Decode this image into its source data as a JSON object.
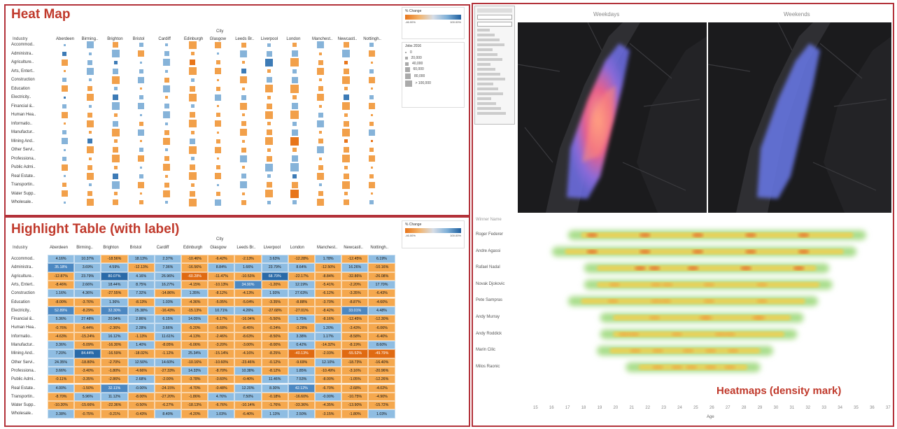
{
  "colors": {
    "orange": "#e8751a",
    "blue": "#3d7bb6",
    "frame": "#b3323a",
    "map_bg": "#1b1b1d"
  },
  "heatmap": {
    "title": "Heat Map",
    "industry_header": "Industry",
    "city_header": "City",
    "cities": [
      "Aberdeen",
      "Birming..",
      "Brighton",
      "Bristol",
      "Cardiff",
      "Edinburgh",
      "Glasgow",
      "Leeds Br..",
      "Liverpool",
      "London",
      "Manchest..",
      "Newcastl..",
      "Nottingh.."
    ],
    "industries": [
      "Accommod..",
      "Administra..",
      "Agriculture..",
      "Arts, Entert..",
      "Construction",
      "Education",
      "Electricity..",
      "Financial &..",
      "Human Hea..",
      "Informatio..",
      "Manufactur..",
      "Mining And..",
      "Other Servi..",
      "Professiona..",
      "Public Admi..",
      "Real Estate..",
      "Transportin..",
      "Water Supp..",
      "Wholesale.."
    ],
    "legend": {
      "title": "% Change",
      "min": "-46.00%",
      "max": "100.00%",
      "size_title": "Jobs 2016",
      "sizes": [
        "0",
        "20,000",
        "40,000",
        "60,000",
        "80,000",
        "> 100,000"
      ]
    }
  },
  "highlight": {
    "title": "Highlight Table (with label)",
    "industry_header": "Industry",
    "city_header": "City",
    "cities": [
      "Aberdeen",
      "Birming..",
      "Brighton",
      "Bristol",
      "Cardiff",
      "Edinburgh",
      "Glasgow",
      "Leeds Br..",
      "Liverpool",
      "London",
      "Manchest..",
      "Newcastl..",
      "Nottingh.."
    ],
    "industries": [
      "Accommod..",
      "Administra..",
      "Agriculture..",
      "Arts, Entert..",
      "Construction",
      "Education",
      "Electricity..",
      "Financial &..",
      "Human Hea..",
      "Informatio..",
      "Manufactur..",
      "Mining And..",
      "Other Servi..",
      "Professiona..",
      "Public Admi..",
      "Real Estate..",
      "Transportin..",
      "Water Supp..",
      "Wholesale.."
    ],
    "values": [
      [
        "4.16%",
        "10.37%",
        "-18.56%",
        "18.13%",
        "2.37%",
        "-10.46%",
        "-6.42%",
        "-2.13%",
        "3.63%",
        "-12.28%",
        "1.78%",
        "-12.45%",
        "6.19%"
      ],
      [
        "35.18%",
        "3.69%",
        "4.59%",
        "-12.13%",
        "7.36%",
        "-16.56%",
        "8.84%",
        "1.66%",
        "23.79%",
        "8.64%",
        "-12.50%",
        "16.26%",
        "-10.16%"
      ],
      [
        "-12.87%",
        "23.79%",
        "80.07%",
        "4.16%",
        "26.96%",
        "-60.28%",
        "-11.47%",
        "-10.53%",
        "68.70%",
        "-22.17%",
        "-8.84%",
        "-32.86%",
        "-26.08%"
      ],
      [
        "-8.46%",
        "2.66%",
        "18.44%",
        "8.75%",
        "16.27%",
        "-4.15%",
        "-10.13%",
        "34.90%",
        "-1.20%",
        "12.19%",
        "-5.41%",
        "-2.20%",
        "17.70%"
      ],
      [
        "1.16%",
        "4.36%",
        "-27.55%",
        "7.32%",
        "-14.86%",
        "1.35%",
        "-8.12%",
        "-4.13%",
        "1.93%",
        "27.63%",
        "-6.12%",
        "-3.35%",
        "-6.43%"
      ],
      [
        "-8.00%",
        "-3.76%",
        "1.36%",
        "-8.13%",
        "1.03%",
        "-4.36%",
        "-5.05%",
        "-5.04%",
        "-3.35%",
        "-8.88%",
        "-3.70%",
        "-8.87%",
        "-4.60%"
      ],
      [
        "52.89%",
        "-8.29%",
        "32.30%",
        "25.38%",
        "-16.43%",
        "-15.13%",
        "10.71%",
        "4.26%",
        "-27.68%",
        "-27.01%",
        "-8.42%",
        "33.01%",
        "4.48%"
      ],
      [
        "5.36%",
        "27.48%",
        "20.94%",
        "2.86%",
        "6.15%",
        "14.05%",
        "-6.17%",
        "-16.04%",
        "-5.50%",
        "1.75%",
        "-8.16%",
        "-12.45%",
        "-12.30%"
      ],
      [
        "-0.76%",
        "-5.44%",
        "-2.36%",
        "2.28%",
        "3.66%",
        "-5.20%",
        "-5.68%",
        "-8.45%",
        "-0.24%",
        "-3.28%",
        "1.20%",
        "-3.43%",
        "-6.06%"
      ],
      [
        "-4.63%",
        "-15.24%",
        "16.12%",
        "-1.13%",
        "11.61%",
        "-4.13%",
        "-2.46%",
        "-8.63%",
        "-8.50%",
        "3.38%",
        "1.17%",
        "-8.58%",
        "-6.40%"
      ],
      [
        "3.36%",
        "-5.09%",
        "-16.30%",
        "1.40%",
        "-8.05%",
        "-6.06%",
        "-3.20%",
        "-3.00%",
        "-8.00%",
        "0.42%",
        "-14.32%",
        "-8.19%",
        "8.60%"
      ],
      [
        "7.20%",
        "84.44%",
        "-16.59%",
        "-18.02%",
        "-1.12%",
        "25.34%",
        "-15.14%",
        "-4.16%",
        "-8.25%",
        "-40.13%",
        "-2.03%",
        "-55.52%",
        "-49.79%"
      ],
      [
        "24.35%",
        "-18.80%",
        "-2.70%",
        "12.50%",
        "14.60%",
        "-10.16%",
        "-10.60%",
        "-23.46%",
        "-0.12%",
        "-9.69%",
        "12.10%",
        "-18.73%",
        "-16.40%"
      ],
      [
        "3.66%",
        "-3.40%",
        "-1.80%",
        "-4.66%",
        "-27.33%",
        "14.33%",
        "-8.70%",
        "10.38%",
        "-8.12%",
        "1.85%",
        "-10.49%",
        "-3.16%",
        "-20.96%"
      ],
      [
        "-0.11%",
        "-3.35%",
        "-2.86%",
        "2.68%",
        "-2.00%",
        "-3.78%",
        "-3.60%",
        "-0.40%",
        "11.46%",
        "7.53%",
        "-8.00%",
        "-1.05%",
        "-12.26%"
      ],
      [
        "4.00%",
        "-1.50%",
        "32.11%",
        "-0.00%",
        "-24.15%",
        "-4.70%",
        "-0.48%",
        "12.20%",
        "8.30%",
        "42.12%",
        "-6.70%",
        "-2.68%",
        "-4.02%"
      ],
      [
        "-8.70%",
        "5.96%",
        "11.12%",
        "-8.00%",
        "-27.20%",
        "-1.86%",
        "4.76%",
        "7.50%",
        "-0.18%",
        "-16.60%",
        "-0.00%",
        "-10.75%",
        "-4.90%"
      ],
      [
        "-10.20%",
        "-15.66%",
        "-22.36%",
        "-0.50%",
        "-6.27%",
        "-18.13%",
        "-6.76%",
        "-10.14%",
        "-1.76%",
        "-33.36%",
        "-4.35%",
        "-13.90%",
        "-15.72%"
      ],
      [
        "3.38%",
        "-0.75%",
        "-0.21%",
        "-0.43%",
        "8.40%",
        "-4.20%",
        "1.03%",
        "-6.40%",
        "1.13%",
        "2.50%",
        "-3.15%",
        "-1.80%",
        "1.03%"
      ]
    ],
    "legend": {
      "title": "% Change",
      "min": "-46.00%",
      "max": "100.00%"
    }
  },
  "maps": {
    "left_title": "Weekdays",
    "right_title": "Weekends"
  },
  "density": {
    "header": "Winner Name",
    "players": [
      "Roger Federer",
      "Andre Agassi",
      "Rafael Nadal",
      "Novak Djokovic",
      "Pete Sampras",
      "Andy Murray",
      "Andy Roddick",
      "Marin Cilic",
      "Milos Raonic"
    ],
    "ages": [
      "15",
      "16",
      "17",
      "18",
      "19",
      "20",
      "21",
      "22",
      "23",
      "24",
      "25",
      "26",
      "27",
      "28",
      "29",
      "30",
      "31",
      "32",
      "33",
      "34",
      "35",
      "36",
      "37"
    ],
    "axis_label": "Age",
    "caption": "Heatmaps (density mark)"
  }
}
